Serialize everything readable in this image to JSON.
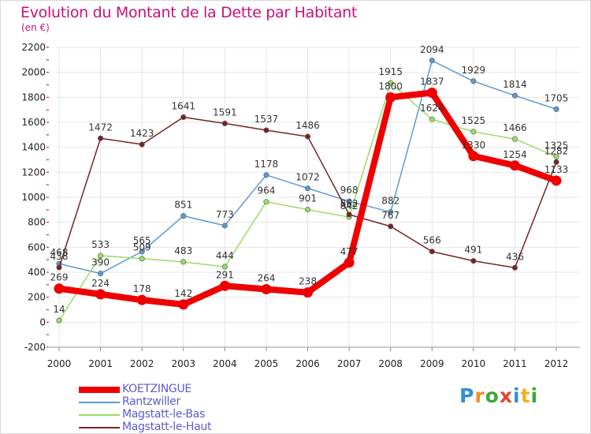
{
  "title": "Evolution du Montant de la Dette par Habitant",
  "subtitle": "(en €)",
  "logo": {
    "letters": [
      "P",
      "r",
      "o",
      "x",
      "i",
      "t",
      "i"
    ],
    "colors": [
      "#2f8fd8",
      "#f28c28",
      "#3aa83a",
      "#e2462f",
      "#2f8fd8",
      "#f2b21c",
      "#3aa83a"
    ]
  },
  "chart_data": {
    "type": "line",
    "title": "Evolution du Montant de la Dette par Habitant",
    "ylabel": "(en €)",
    "xlabel": "",
    "x": [
      "2000",
      "2001",
      "2002",
      "2003",
      "2004",
      "2005",
      "2006",
      "2007",
      "2008",
      "2009",
      "2010",
      "2011",
      "2012"
    ],
    "ylim": [
      -200,
      2200
    ],
    "yticks": [
      -200,
      0,
      200,
      400,
      600,
      800,
      1000,
      1200,
      1400,
      1600,
      1800,
      2000,
      2200
    ],
    "grid": true,
    "legend_position": "bottom-left",
    "series": [
      {
        "name": "KOETZINGUE",
        "color": "#ee0000",
        "emphasis": true,
        "values": [
          269,
          224,
          178,
          142,
          291,
          264,
          238,
          477,
          1800,
          1837,
          1330,
          1254,
          1133
        ]
      },
      {
        "name": "Rantzwiller",
        "color": "#5b9bd5",
        "emphasis": false,
        "values": [
          468,
          390,
          565,
          851,
          773,
          1178,
          1072,
          968,
          882,
          2094,
          1929,
          1814,
          1705
        ]
      },
      {
        "name": "Magstatt-le-Bas",
        "color": "#99dd66",
        "emphasis": false,
        "values": [
          14,
          533,
          509,
          483,
          444,
          964,
          901,
          842,
          1915,
          1624,
          1525,
          1466,
          1325
        ]
      },
      {
        "name": "Magstatt-le-Haut",
        "color": "#7a2222",
        "emphasis": false,
        "values": [
          438,
          1472,
          1423,
          1641,
          1591,
          1537,
          1486,
          862,
          767,
          566,
          491,
          436,
          1282
        ]
      }
    ]
  }
}
